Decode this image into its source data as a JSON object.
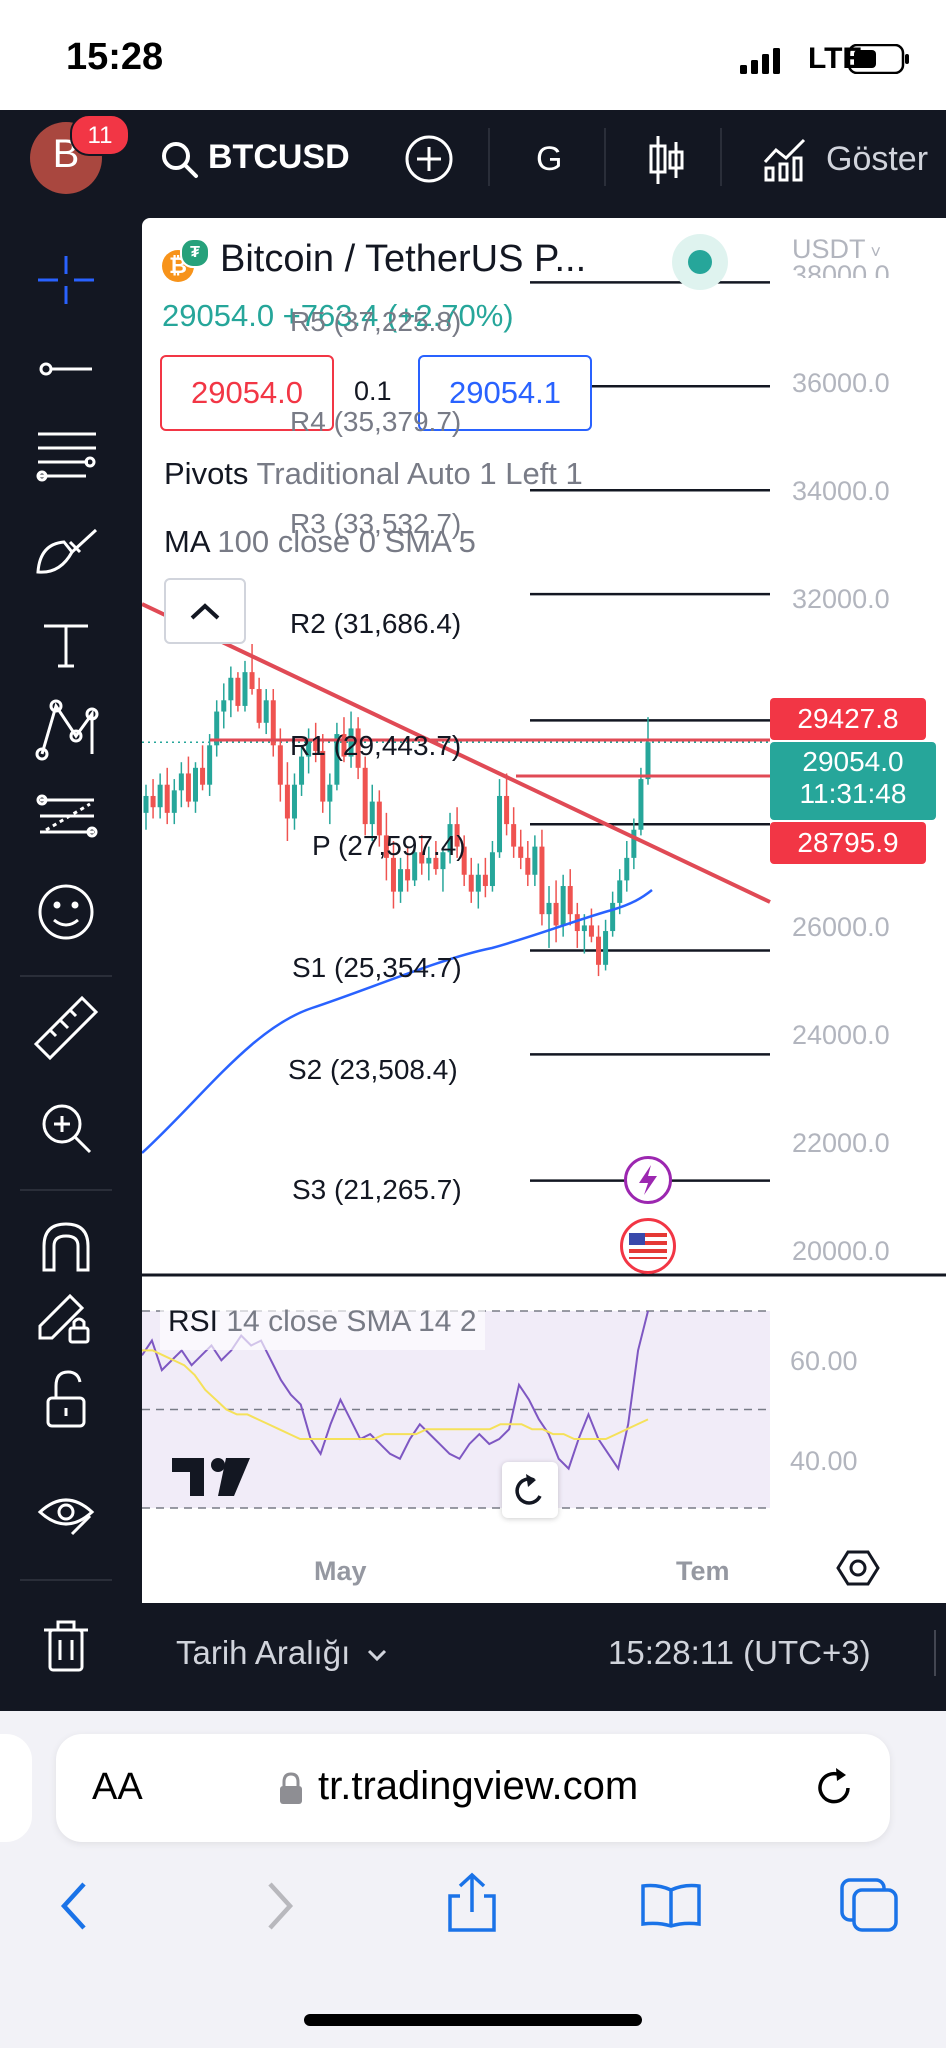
{
  "status": {
    "time": "15:28",
    "network": "LTE"
  },
  "header": {
    "avatar_letter": "B",
    "notification_count": "11",
    "symbol": "BTCUSD",
    "interval": "G",
    "indicators_label": "Göster"
  },
  "legend": {
    "title": "Bitcoin / TetherUS P...",
    "last_change": "29054.0 +763.4 (+2.70%)",
    "sell_price": "29054.0",
    "spread": "0.1",
    "buy_price": "29054.1",
    "pivots_name": "Pivots",
    "pivots_params": "Traditional Auto 1 Left 1",
    "ma_name": "MA",
    "ma_params": "100 close 0 SMA 5"
  },
  "currency": "USDT",
  "price_axis": [
    "38000.0",
    "36000.0",
    "34000.0",
    "32000.0",
    "26000.0",
    "24000.0",
    "22000.0",
    "20000.0"
  ],
  "price_badges": {
    "upper": "29427.8",
    "last": "29054.0",
    "countdown": "11:31:48",
    "lower": "28795.9"
  },
  "pivots": {
    "r5": "R5 (37,225.8)",
    "r4": "R4 (35,379.7)",
    "r3": "R3 (33,532.7)",
    "r2": "R2 (31,686.4)",
    "r1": "R1 (29,443.7)",
    "p": "P (27,597.4)",
    "s1": "S1 (25,354.7)",
    "s2": "S2 (23,508.4)",
    "s3": "S3 (21,265.7)"
  },
  "rsi": {
    "label": "RSI",
    "params": "14 close SMA 14 2",
    "axis": [
      "60.00",
      "40.00"
    ]
  },
  "time_axis": {
    "may": "May",
    "jul": "Tem"
  },
  "bottom_bar": {
    "date_range": "Tarih Aralığı",
    "clock": "15:28:11 (UTC+3)"
  },
  "browser": {
    "text_size": "AA",
    "url": "tr.tradingview.com"
  },
  "colors": {
    "toolbar_bg": "#131722",
    "up": "#26a69a",
    "down": "#ef5350",
    "trendline": "#e04a55",
    "ma_line": "#2962ff",
    "rsi_line": "#7e57c2",
    "rsi_ma": "#f5e15a",
    "accent_blue": "#2962ff",
    "ios_blue": "#1a73e8"
  },
  "chart_data": {
    "type": "candlestick",
    "symbol": "BTCUSDT",
    "ylim": [
      19500,
      38600
    ],
    "last_price": 29054.0,
    "pivot_levels": [
      {
        "name": "R5",
        "value": 37225.8
      },
      {
        "name": "R4",
        "value": 35379.7
      },
      {
        "name": "R3",
        "value": 33532.7
      },
      {
        "name": "R2",
        "value": 31686.4
      },
      {
        "name": "R1",
        "value": 29443.7
      },
      {
        "name": "P",
        "value": 27597.4
      },
      {
        "name": "S1",
        "value": 25354.7
      },
      {
        "name": "S2",
        "value": 23508.4
      },
      {
        "name": "S3",
        "value": 21265.7
      }
    ],
    "candles": [
      [
        27800,
        28300,
        27500,
        28100
      ],
      [
        28100,
        28400,
        27700,
        27900
      ],
      [
        27900,
        28500,
        27700,
        28300
      ],
      [
        28300,
        28600,
        27600,
        27800
      ],
      [
        27800,
        28400,
        27600,
        28200
      ],
      [
        28200,
        28700,
        27900,
        28500
      ],
      [
        28500,
        28800,
        27900,
        28000
      ],
      [
        28000,
        28700,
        27800,
        28600
      ],
      [
        28600,
        29000,
        28200,
        28300
      ],
      [
        28300,
        29200,
        28100,
        29000
      ],
      [
        29000,
        29800,
        28800,
        29600
      ],
      [
        29600,
        30100,
        29300,
        29800
      ],
      [
        29800,
        30400,
        29500,
        30200
      ],
      [
        30200,
        30300,
        29600,
        29700
      ],
      [
        29700,
        30500,
        29600,
        30300
      ],
      [
        30300,
        30800,
        29900,
        30000
      ],
      [
        30000,
        30200,
        29300,
        29400
      ],
      [
        29400,
        30000,
        29200,
        29800
      ],
      [
        29800,
        30000,
        28800,
        29000
      ],
      [
        29000,
        29300,
        28000,
        28300
      ],
      [
        28300,
        28700,
        27300,
        27700
      ],
      [
        27700,
        28500,
        27500,
        28300
      ],
      [
        28300,
        29000,
        28100,
        28800
      ],
      [
        28800,
        29300,
        28500,
        29100
      ],
      [
        29100,
        29400,
        28700,
        28900
      ],
      [
        28900,
        29200,
        27800,
        28000
      ],
      [
        28000,
        28500,
        27600,
        28300
      ],
      [
        28300,
        29400,
        28200,
        29200
      ],
      [
        29200,
        29500,
        28700,
        28800
      ],
      [
        28800,
        29600,
        28600,
        29300
      ],
      [
        29300,
        29500,
        28400,
        28600
      ],
      [
        28600,
        28800,
        27400,
        27600
      ],
      [
        27600,
        28300,
        27300,
        28000
      ],
      [
        28000,
        28200,
        27200,
        27400
      ],
      [
        27400,
        27800,
        26600,
        27000
      ],
      [
        27000,
        27300,
        26100,
        26400
      ],
      [
        26400,
        27000,
        26200,
        26800
      ],
      [
        26800,
        27200,
        26400,
        26600
      ],
      [
        26600,
        27300,
        26500,
        27100
      ],
      [
        27100,
        27400,
        26700,
        26900
      ],
      [
        26900,
        27200,
        26600,
        27000
      ],
      [
        27000,
        27300,
        26700,
        26800
      ],
      [
        26800,
        27200,
        26400,
        27100
      ],
      [
        27100,
        27800,
        26900,
        27600
      ],
      [
        27600,
        27900,
        27000,
        27200
      ],
      [
        27200,
        27400,
        26500,
        26700
      ],
      [
        26700,
        27000,
        26200,
        26400
      ],
      [
        26400,
        26900,
        26100,
        26700
      ],
      [
        26700,
        27000,
        26300,
        26500
      ],
      [
        26500,
        27300,
        26400,
        27100
      ],
      [
        27100,
        28400,
        27000,
        28100
      ],
      [
        28100,
        28500,
        27400,
        27600
      ],
      [
        27600,
        27900,
        27000,
        27200
      ],
      [
        27200,
        27500,
        26800,
        27000
      ],
      [
        27000,
        27300,
        26500,
        26700
      ],
      [
        26700,
        27400,
        26500,
        27200
      ],
      [
        27200,
        27500,
        25800,
        26000
      ],
      [
        26000,
        26500,
        25400,
        26200
      ],
      [
        26200,
        26600,
        25500,
        25800
      ],
      [
        25800,
        26700,
        25600,
        26500
      ],
      [
        26500,
        26800,
        25800,
        26000
      ],
      [
        26000,
        26200,
        25400,
        25700
      ],
      [
        25700,
        26000,
        25300,
        25800
      ],
      [
        25800,
        26100,
        25500,
        25600
      ],
      [
        25600,
        25800,
        24900,
        25100
      ],
      [
        25100,
        25900,
        25000,
        25700
      ],
      [
        25700,
        26400,
        25600,
        26200
      ],
      [
        26200,
        26800,
        26000,
        26600
      ],
      [
        26600,
        27300,
        26400,
        27000
      ],
      [
        27000,
        27700,
        26800,
        27500
      ],
      [
        27500,
        28600,
        27400,
        28400
      ],
      [
        28400,
        29500,
        28300,
        29054
      ]
    ],
    "rsi_ylim": [
      30,
      70
    ],
    "rsi_values": [
      61,
      64,
      58,
      60,
      62,
      59,
      61,
      63,
      60,
      62,
      65,
      63,
      64,
      60,
      56,
      53,
      51,
      44,
      41,
      47,
      52,
      48,
      44,
      45,
      43,
      41,
      40,
      44,
      47,
      45,
      43,
      41,
      40,
      43,
      45,
      43,
      44,
      46,
      55,
      52,
      48,
      45,
      40,
      38,
      44,
      49,
      44,
      41,
      38,
      47,
      62,
      70
    ],
    "rsi_ma_values": [
      62,
      62,
      61,
      60,
      59,
      57,
      54,
      52,
      50,
      49,
      49,
      48,
      47,
      46,
      45,
      44,
      44,
      44,
      44,
      44,
      44,
      44,
      44,
      45,
      45,
      45,
      45,
      46,
      46,
      46,
      46,
      46,
      46,
      46,
      47,
      47,
      47,
      46,
      46,
      45,
      45,
      44,
      44,
      44,
      44,
      45,
      46,
      47,
      48
    ]
  }
}
